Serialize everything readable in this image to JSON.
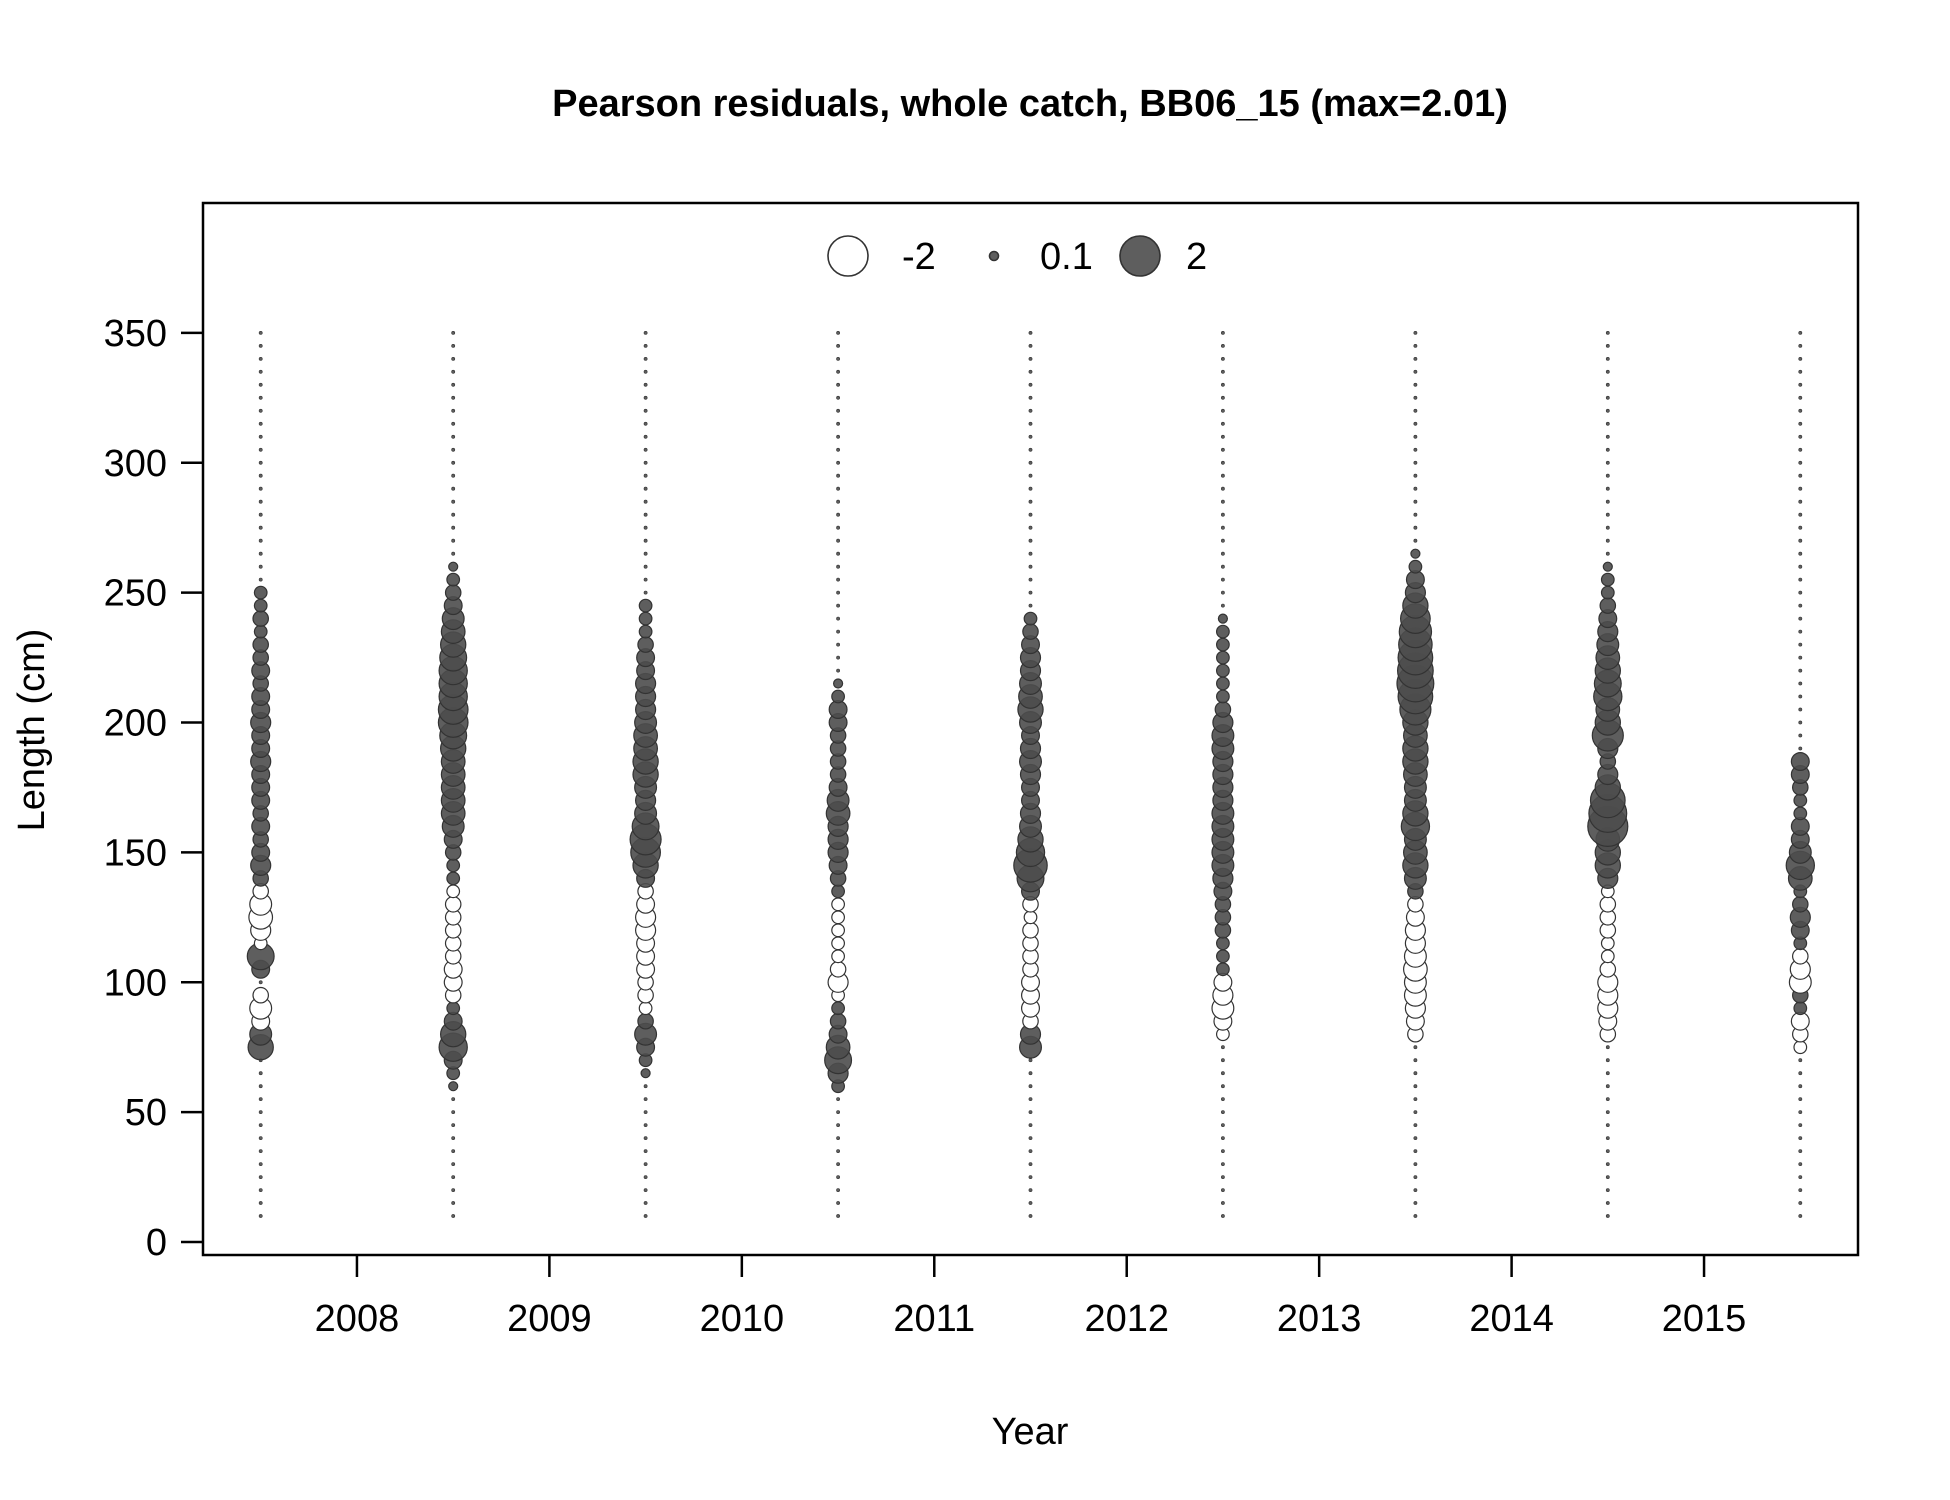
{
  "chart_data": {
    "type": "scatter",
    "subtype": "bubble",
    "title": "Pearson residuals, whole catch, BB06_15 (max=2.01)",
    "xlabel": "Year",
    "ylabel": "Length (cm)",
    "xlim": [
      2007.2,
      2015.8
    ],
    "ylim": [
      -5,
      400
    ],
    "x_ticks": [
      2008,
      2009,
      2010,
      2011,
      2012,
      2013,
      2014,
      2015
    ],
    "y_ticks": [
      0,
      50,
      100,
      150,
      200,
      250,
      300,
      350
    ],
    "grid": false,
    "legend": {
      "position": "top-center",
      "entries": [
        {
          "label": "-2",
          "value": -2
        },
        {
          "label": "0.1",
          "value": 0.1
        },
        {
          "label": "2",
          "value": 2
        }
      ]
    },
    "colors": {
      "positive_fill": "#4d4d4d",
      "negative_fill": "#ffffff",
      "stroke": "#333333",
      "frame": "#000000"
    },
    "length_bins": {
      "min": 10,
      "max": 350,
      "step": 5
    },
    "residual_scale_max": 2.01,
    "series": [
      {
        "x": 2007.5,
        "residuals": {
          "75": 0.8,
          "80": 0.6,
          "85": -0.4,
          "90": -0.6,
          "95": -0.3,
          "105": 0.4,
          "110": 0.9,
          "115": -0.2,
          "120": -0.5,
          "125": -0.7,
          "130": -0.6,
          "135": -0.3,
          "140": 0.3,
          "145": 0.5,
          "150": 0.4,
          "155": 0.3,
          "160": 0.4,
          "165": 0.3,
          "170": 0.4,
          "175": 0.4,
          "180": 0.4,
          "185": 0.5,
          "190": 0.4,
          "195": 0.4,
          "200": 0.5,
          "205": 0.4,
          "210": 0.4,
          "215": 0.3,
          "220": 0.4,
          "225": 0.3,
          "230": 0.3,
          "235": 0.2,
          "240": 0.3,
          "245": 0.2,
          "250": 0.2
        }
      },
      {
        "x": 2008.5,
        "residuals": {
          "60": 0.1,
          "65": 0.2,
          "70": 0.4,
          "75": 1.0,
          "80": 0.8,
          "85": 0.4,
          "90": 0.2,
          "95": -0.3,
          "100": -0.4,
          "105": -0.4,
          "110": -0.3,
          "115": -0.3,
          "120": -0.3,
          "125": -0.3,
          "130": -0.3,
          "135": -0.2,
          "140": 0.2,
          "145": 0.2,
          "150": 0.3,
          "155": 0.4,
          "160": 0.6,
          "165": 0.7,
          "170": 0.7,
          "175": 0.7,
          "180": 0.7,
          "185": 0.7,
          "190": 0.8,
          "195": 0.9,
          "200": 1.1,
          "205": 1.1,
          "210": 1.0,
          "215": 1.0,
          "220": 1.0,
          "225": 0.9,
          "230": 0.8,
          "235": 0.7,
          "240": 0.6,
          "245": 0.4,
          "250": 0.3,
          "255": 0.2,
          "260": 0.1
        }
      },
      {
        "x": 2009.5,
        "residuals": {
          "65": 0.1,
          "70": 0.2,
          "75": 0.4,
          "80": 0.6,
          "85": 0.3,
          "90": -0.2,
          "95": -0.3,
          "100": -0.3,
          "105": -0.4,
          "110": -0.4,
          "115": -0.4,
          "120": -0.5,
          "125": -0.5,
          "130": -0.4,
          "135": -0.3,
          "140": 0.4,
          "145": 0.8,
          "150": 1.1,
          "155": 1.2,
          "160": 0.9,
          "165": 0.6,
          "170": 0.5,
          "175": 0.6,
          "180": 0.8,
          "185": 0.8,
          "190": 0.7,
          "195": 0.7,
          "200": 0.6,
          "205": 0.5,
          "210": 0.5,
          "215": 0.5,
          "220": 0.4,
          "225": 0.4,
          "230": 0.3,
          "235": 0.2,
          "240": 0.2,
          "245": 0.2
        }
      },
      {
        "x": 2010.5,
        "residuals": {
          "60": 0.2,
          "65": 0.5,
          "70": 0.9,
          "75": 0.7,
          "80": 0.4,
          "85": 0.3,
          "90": 0.2,
          "95": -0.2,
          "100": -0.5,
          "105": -0.3,
          "110": -0.2,
          "115": -0.2,
          "120": -0.2,
          "125": -0.2,
          "130": -0.2,
          "135": 0.2,
          "140": 0.3,
          "145": 0.4,
          "150": 0.5,
          "155": 0.5,
          "160": 0.5,
          "165": 0.7,
          "170": 0.6,
          "175": 0.4,
          "180": 0.3,
          "185": 0.3,
          "190": 0.3,
          "195": 0.3,
          "200": 0.4,
          "205": 0.4,
          "210": 0.2,
          "215": 0.1
        }
      },
      {
        "x": 2011.5,
        "residuals": {
          "75": 0.6,
          "80": 0.5,
          "85": -0.3,
          "90": -0.4,
          "95": -0.4,
          "100": -0.4,
          "105": -0.3,
          "110": -0.3,
          "115": -0.3,
          "120": -0.3,
          "125": -0.2,
          "130": -0.3,
          "135": 0.4,
          "140": 0.9,
          "145": 1.4,
          "150": 1.0,
          "155": 0.8,
          "160": 0.6,
          "165": 0.5,
          "170": 0.4,
          "175": 0.4,
          "180": 0.5,
          "185": 0.6,
          "190": 0.5,
          "195": 0.4,
          "200": 0.6,
          "205": 0.8,
          "210": 0.7,
          "215": 0.6,
          "220": 0.5,
          "225": 0.5,
          "230": 0.4,
          "235": 0.3,
          "240": 0.2
        }
      },
      {
        "x": 2012.5,
        "residuals": {
          "80": -0.2,
          "85": -0.4,
          "90": -0.6,
          "95": -0.5,
          "100": -0.4,
          "105": 0.2,
          "110": 0.2,
          "115": 0.2,
          "120": 0.3,
          "125": 0.3,
          "130": 0.3,
          "135": 0.4,
          "140": 0.5,
          "145": 0.6,
          "150": 0.6,
          "155": 0.6,
          "160": 0.6,
          "165": 0.6,
          "170": 0.5,
          "175": 0.5,
          "180": 0.5,
          "185": 0.5,
          "190": 0.6,
          "195": 0.6,
          "200": 0.5,
          "205": 0.3,
          "210": 0.2,
          "215": 0.2,
          "220": 0.2,
          "225": 0.2,
          "230": 0.2,
          "235": 0.2,
          "240": 0.1
        }
      },
      {
        "x": 2013.5,
        "residuals": {
          "80": -0.3,
          "85": -0.4,
          "90": -0.5,
          "95": -0.6,
          "100": -0.6,
          "105": -0.7,
          "110": -0.6,
          "115": -0.5,
          "120": -0.5,
          "125": -0.4,
          "130": -0.3,
          "135": 0.3,
          "140": 0.6,
          "145": 0.8,
          "150": 0.7,
          "155": 0.6,
          "160": 1.0,
          "165": 0.8,
          "170": 0.6,
          "175": 0.6,
          "180": 0.7,
          "185": 0.8,
          "190": 0.8,
          "195": 0.7,
          "200": 0.8,
          "205": 1.2,
          "210": 1.5,
          "215": 1.7,
          "220": 1.6,
          "225": 1.5,
          "230": 1.4,
          "235": 1.3,
          "240": 1.1,
          "245": 0.8,
          "250": 0.5,
          "255": 0.4,
          "260": 0.2,
          "265": 0.1
        }
      },
      {
        "x": 2014.5,
        "residuals": {
          "80": -0.3,
          "85": -0.4,
          "90": -0.5,
          "95": -0.5,
          "100": -0.5,
          "105": -0.3,
          "110": -0.2,
          "115": -0.2,
          "120": -0.3,
          "125": -0.3,
          "130": -0.3,
          "135": -0.2,
          "140": 0.5,
          "145": 0.8,
          "150": 0.8,
          "155": 0.7,
          "160": 2.0,
          "165": 1.8,
          "170": 1.5,
          "175": 0.8,
          "180": 0.5,
          "185": 0.3,
          "190": 0.5,
          "195": 1.2,
          "200": 0.8,
          "205": 0.7,
          "210": 1.0,
          "215": 0.9,
          "220": 0.8,
          "225": 0.7,
          "230": 0.6,
          "235": 0.5,
          "240": 0.4,
          "245": 0.3,
          "250": 0.2,
          "255": 0.2,
          "260": 0.1
        }
      },
      {
        "x": 2015.5,
        "residuals": {
          "75": -0.2,
          "80": -0.3,
          "85": -0.4,
          "90": 0.2,
          "95": 0.3,
          "100": -0.6,
          "105": -0.5,
          "110": -0.3,
          "115": 0.2,
          "120": 0.4,
          "125": 0.5,
          "130": 0.3,
          "135": 0.2,
          "140": 0.7,
          "145": 1.0,
          "150": 0.6,
          "155": 0.4,
          "160": 0.4,
          "165": 0.2,
          "170": 0.2,
          "175": 0.3,
          "180": 0.4,
          "185": 0.4
        }
      }
    ]
  }
}
